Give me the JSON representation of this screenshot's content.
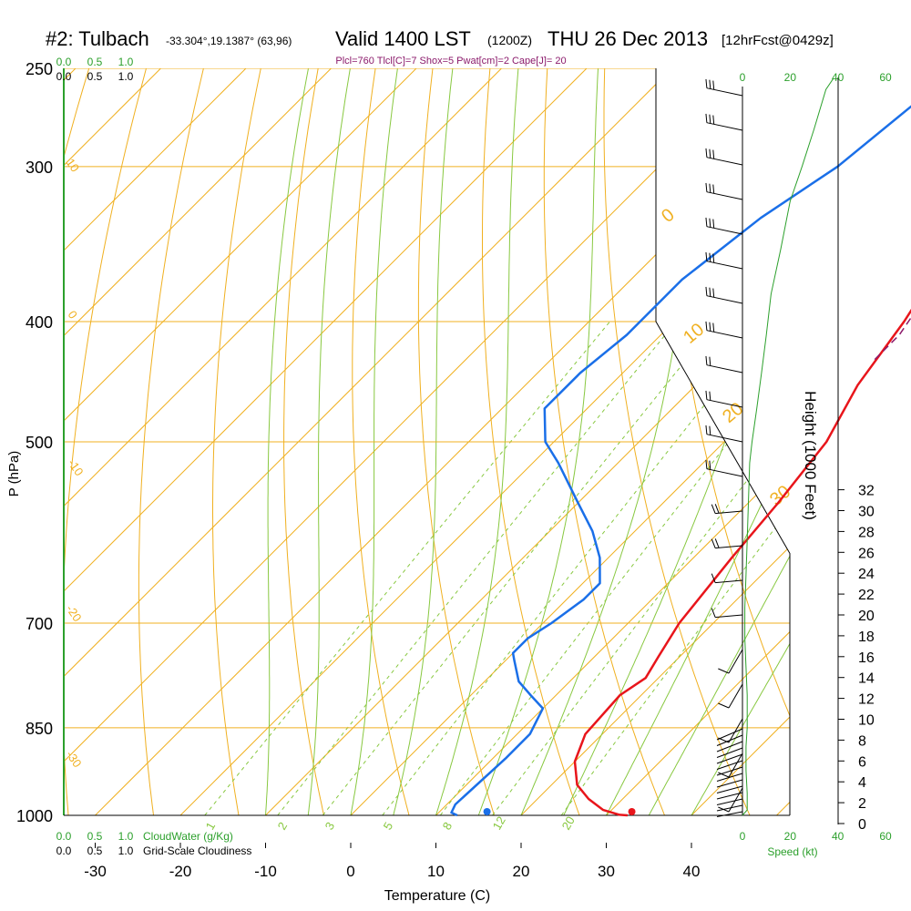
{
  "header": {
    "station": "#2: Tulbach",
    "coords": "-33.304°,19.1387° (63,96)",
    "valid": "Valid 1400 LST",
    "zulu": "(1200Z)",
    "date": "THU 26 Dec 2013",
    "forecast": "[12hrFcst@0429z]",
    "indices": "Plcl=760 Tlcl[C]=7 Shox=5 Pwat[cm]=2 Cape[J]= 20"
  },
  "chart_data": {
    "type": "line",
    "xlabel": "Temperature (C)",
    "ylabel": "P (hPa)",
    "right_axis_label": "Height (1000 Feet)",
    "x_ticks": [
      "-30",
      "-20",
      "-10",
      "0",
      "10",
      "20",
      "30",
      "40"
    ],
    "xlim": [
      -34,
      50
    ],
    "p_ticks": [
      "250",
      "300",
      "400",
      "500",
      "700",
      "850",
      "1000"
    ],
    "height_ticks": [
      "0",
      "2",
      "4",
      "6",
      "8",
      "10",
      "12",
      "14",
      "16",
      "18",
      "20",
      "22",
      "24",
      "26",
      "28",
      "30",
      "32"
    ],
    "mixing_ratio_labels": [
      "1",
      "2",
      "3",
      "5",
      "8",
      "12",
      "20"
    ],
    "wetbulb_labels": [
      "0",
      "10",
      "20",
      "30"
    ],
    "dryadiabat_labels": [
      "10",
      "0",
      "-10",
      "-20",
      "-30"
    ],
    "speed_ticks": [
      "0",
      "20",
      "40",
      "60"
    ],
    "speed_label": "Speed (kt)",
    "cloud_ticks": [
      "0.0",
      "0.5",
      "1.0"
    ],
    "cloudwater_label": "CloudWater (g/Kg)",
    "cloudiness_label": "Grid-Scale Cloudiness",
    "series": [
      {
        "values": [
          [
            32.5,
            1000
          ],
          [
            31.5,
            999
          ],
          [
            29,
            990
          ],
          [
            26,
            970
          ],
          [
            23,
            945
          ],
          [
            20,
            905
          ],
          [
            18,
            860
          ],
          [
            17.5,
            800
          ],
          [
            18.5,
            775
          ],
          [
            17.5,
            745
          ],
          [
            16,
            700
          ],
          [
            14.5,
            620
          ],
          [
            13.5,
            560
          ],
          [
            12,
            500
          ],
          [
            9,
            450
          ],
          [
            7,
            400
          ],
          [
            4,
            350
          ],
          [
            1,
            300
          ],
          [
            -1,
            255
          ]
        ]
      },
      {
        "values": [
          [
            12.5,
            1000
          ],
          [
            11.5,
            995
          ],
          [
            11,
            980
          ],
          [
            11.5,
            900
          ],
          [
            11.5,
            860
          ],
          [
            10,
            820
          ],
          [
            7,
            800
          ],
          [
            4,
            780
          ],
          [
            1,
            750
          ],
          [
            0,
            740
          ],
          [
            0,
            720
          ],
          [
            1,
            700
          ],
          [
            2,
            670
          ],
          [
            2,
            650
          ],
          [
            -1,
            620
          ],
          [
            -5,
            590
          ],
          [
            -10,
            560
          ],
          [
            -17,
            520
          ],
          [
            -21,
            500
          ],
          [
            -25,
            470
          ],
          [
            -25,
            440
          ],
          [
            -24,
            410
          ],
          [
            -24,
            370
          ],
          [
            -22,
            330
          ],
          [
            -19,
            300
          ],
          [
            -17,
            260
          ],
          [
            -16,
            255
          ]
        ]
      },
      {
        "values": [
          [
            6,
            370
          ],
          [
            7,
            390
          ],
          [
            8,
            410
          ],
          [
            8,
            430
          ]
        ]
      }
    ],
    "surface_points": [
      {
        "t": 33,
        "p": 1000,
        "color": "#e8151b"
      },
      {
        "t": 16,
        "p": 1000,
        "color": "#1a6fe8"
      }
    ],
    "wind_speed_profile": [
      [
        0,
        1000
      ],
      [
        2,
        990
      ],
      [
        2,
        960
      ],
      [
        1.5,
        920
      ],
      [
        1.5,
        880
      ],
      [
        2,
        850
      ],
      [
        2,
        800
      ],
      [
        1.5,
        760
      ],
      [
        1,
        720
      ],
      [
        1,
        680
      ],
      [
        1.5,
        640
      ],
      [
        2,
        600
      ],
      [
        2.5,
        560
      ],
      [
        3,
        520
      ],
      [
        4,
        500
      ],
      [
        6,
        470
      ],
      [
        8,
        440
      ],
      [
        10,
        410
      ],
      [
        12,
        380
      ],
      [
        16,
        350
      ],
      [
        20,
        320
      ],
      [
        25,
        300
      ],
      [
        30,
        280
      ],
      [
        35,
        260
      ],
      [
        38,
        255
      ]
    ],
    "cloud_profile": [
      [
        0,
        1000
      ],
      [
        0,
        250
      ]
    ],
    "colors": {
      "temperature": "#e8151b",
      "dewpoint": "#1a6fe8",
      "parcel": "#8b1a6b",
      "isotherm": "#f0b020",
      "mixing_ratio": "#88c840",
      "wind": "#2ca02c"
    }
  }
}
